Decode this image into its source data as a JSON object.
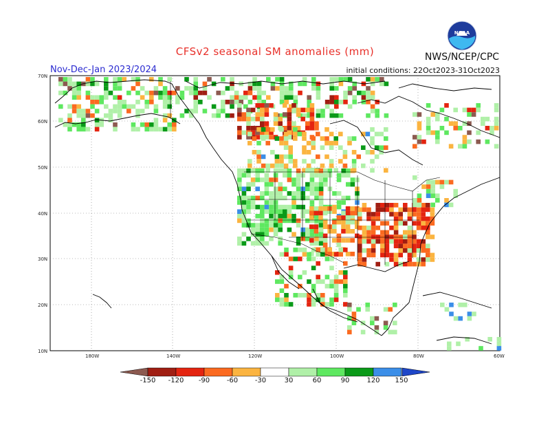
{
  "header": {
    "title": "CFSv2 seasonal SM anomalies (mm)",
    "period": "Nov-Dec-Jan 2023/2024",
    "initial_conditions": "initial conditions: 22Oct2023-31Oct2023",
    "agency": "NWS/NCEP/CPC",
    "logo_text": "NOAA"
  },
  "map": {
    "lat_labels": [
      "70N",
      "60N",
      "50N",
      "40N",
      "30N",
      "20N",
      "10N"
    ],
    "lon_labels": [
      "180W",
      "140W",
      "120W",
      "100W",
      "80W",
      "60W"
    ]
  },
  "colorbar": {
    "labels": [
      "-150",
      "-120",
      "-90",
      "-60",
      "-30",
      "30",
      "60",
      "90",
      "120",
      "150"
    ],
    "colors": [
      "#8c5a50",
      "#a01e12",
      "#e42410",
      "#fb6a20",
      "#fbb440",
      "#ffffff",
      "#b0f0a8",
      "#5ee860",
      "#0a9a18",
      "#3b8ee8",
      "#1e46c8"
    ]
  },
  "colors": {
    "title": "#e8302a",
    "period": "#2a2ad0"
  }
}
